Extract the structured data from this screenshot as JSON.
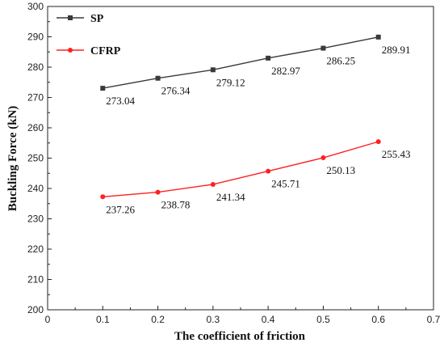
{
  "chart_data": {
    "type": "line",
    "title": "",
    "xlabel": "The coefficient of friction",
    "ylabel": "Buckling Force (kN)",
    "xlim": [
      0,
      0.7
    ],
    "ylim": [
      200,
      300
    ],
    "xticks": [
      "0",
      "0.1",
      "0.2",
      "0.3",
      "0.4",
      "0.5",
      "0.6",
      "0.7"
    ],
    "yticks": [
      "200",
      "210",
      "220",
      "230",
      "240",
      "250",
      "260",
      "270",
      "280",
      "290",
      "300"
    ],
    "x": [
      0.1,
      0.2,
      0.3,
      0.4,
      0.5,
      0.6
    ],
    "grid": false,
    "legend_position": "top-left",
    "series": [
      {
        "name": "SP",
        "color": "#3a3a3a",
        "marker": "square",
        "values": [
          273.04,
          276.34,
          279.12,
          282.97,
          286.25,
          289.91
        ],
        "labels": [
          "273.04",
          "276.34",
          "279.12",
          "282.97",
          "286.25",
          "289.91"
        ]
      },
      {
        "name": "CFRP",
        "color": "#ff2020",
        "marker": "circle",
        "values": [
          237.26,
          238.78,
          241.34,
          245.71,
          250.13,
          255.43
        ],
        "labels": [
          "237.26",
          "238.78",
          "241.34",
          "245.71",
          "250.13",
          "255.43"
        ]
      }
    ]
  }
}
